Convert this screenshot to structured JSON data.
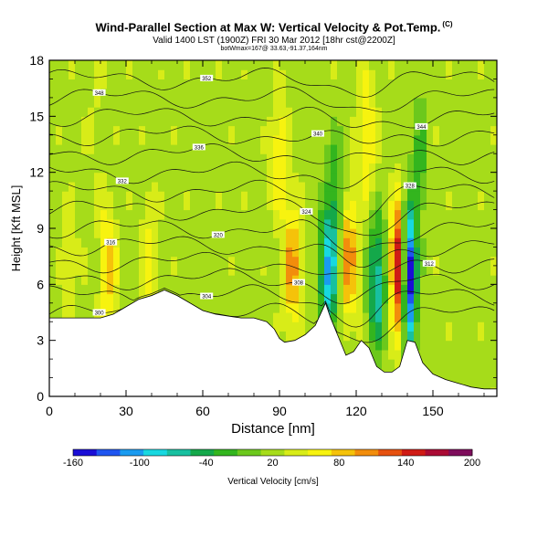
{
  "header": {
    "title": "Wind-Parallel Section at Max W: Vertical Velocity & Pot.Temp.",
    "copyright": "(C)",
    "subtitle": "Valid 1400 LST (1900Z) FRI 30 Mar 2012 [18hr cst@2200Z]",
    "subtitle2": "botWmax=167@ 33.63,-91.37,164nm"
  },
  "chart_data": {
    "type": "heatmap",
    "title": "Wind-Parallel Section at Max W: Vertical Velocity & Pot.Temp.",
    "xlabel": "Distance [nm]",
    "ylabel": "Height [Kft MSL]",
    "xlim": [
      0,
      175
    ],
    "ylim": [
      0,
      18
    ],
    "xticks": [
      0,
      30,
      60,
      90,
      120,
      150
    ],
    "yticks": [
      0,
      3,
      6,
      9,
      12,
      15,
      18
    ],
    "xtick_labels": [
      "0",
      "30",
      "60",
      "90",
      "120",
      "150"
    ],
    "ytick_labels": [
      "0",
      "3",
      "6",
      "9",
      "12",
      "15",
      "18"
    ],
    "colorbar": {
      "label": "Vertical Velocity [cm/s]",
      "min": -160,
      "max": 200,
      "tick_values": [
        -160,
        -100,
        -40,
        20,
        80,
        140,
        200
      ],
      "tick_labels": [
        "-160",
        "-100",
        "-40",
        "20",
        "80",
        "140",
        "200"
      ],
      "colors": [
        "#1a0ed6",
        "#1f55f0",
        "#1a9bf0",
        "#18d8e0",
        "#18c0a0",
        "#14a84a",
        "#33b51e",
        "#6cc81c",
        "#a6dc1a",
        "#d8ec18",
        "#f7f30f",
        "#f5c20a",
        "#f28d0c",
        "#e6510f",
        "#cf1b15",
        "#aa0b35",
        "#7e0d5c"
      ]
    },
    "terrain_top_kft": [
      [
        0,
        4.2
      ],
      [
        10,
        4.2
      ],
      [
        20,
        4.2
      ],
      [
        25,
        4.4
      ],
      [
        30,
        4.8
      ],
      [
        35,
        5.2
      ],
      [
        40,
        5.4
      ],
      [
        45,
        5.7
      ],
      [
        50,
        5.4
      ],
      [
        55,
        5.0
      ],
      [
        60,
        4.6
      ],
      [
        65,
        4.4
      ],
      [
        70,
        4.3
      ],
      [
        75,
        4.2
      ],
      [
        80,
        4.2
      ],
      [
        85,
        4.0
      ],
      [
        88,
        3.6
      ],
      [
        90,
        3.1
      ],
      [
        92,
        2.9
      ],
      [
        96,
        3.0
      ],
      [
        100,
        3.3
      ],
      [
        104,
        3.8
      ],
      [
        108,
        5.0
      ],
      [
        110,
        4.2
      ],
      [
        113,
        3.2
      ],
      [
        116,
        2.2
      ],
      [
        119,
        2.4
      ],
      [
        122,
        3.0
      ],
      [
        125,
        2.6
      ],
      [
        128,
        1.6
      ],
      [
        131,
        1.3
      ],
      [
        134,
        1.3
      ],
      [
        137,
        1.6
      ],
      [
        140,
        3.0
      ],
      [
        143,
        2.9
      ],
      [
        146,
        1.8
      ],
      [
        150,
        1.2
      ],
      [
        155,
        0.9
      ],
      [
        160,
        0.7
      ],
      [
        165,
        0.5
      ],
      [
        170,
        0.4
      ],
      [
        175,
        0.4
      ]
    ],
    "velocity_maxima": [
      {
        "x": 8,
        "z": 7.2,
        "w": 45
      },
      {
        "x": 23,
        "z": 7.0,
        "w": 80
      },
      {
        "x": 39,
        "z": 7.5,
        "w": 60
      },
      {
        "x": 95,
        "z": 7.0,
        "w": 100
      },
      {
        "x": 117,
        "z": 7.5,
        "w": 110
      },
      {
        "x": 136,
        "z": 7.0,
        "w": 167
      },
      {
        "x": 90,
        "z": 13.0,
        "w": 70
      },
      {
        "x": 124,
        "z": 14.0,
        "w": 80
      },
      {
        "x": 18,
        "z": 14.5,
        "w": 30
      }
    ],
    "velocity_minima": [
      {
        "x": 109,
        "z": 6.5,
        "w": -100
      },
      {
        "x": 128,
        "z": 6.0,
        "w": -80
      },
      {
        "x": 141,
        "z": 6.5,
        "w": -160
      },
      {
        "x": 112,
        "z": 10.5,
        "w": -30
      },
      {
        "x": 145,
        "z": 12.5,
        "w": -20
      }
    ],
    "isentropes": [
      {
        "theta": "300",
        "base_kft": 4.4
      },
      {
        "theta": "304",
        "base_kft": 5.4
      },
      {
        "theta": "308",
        "base_kft": 6.3
      },
      {
        "theta": "312",
        "base_kft": 7.2
      },
      {
        "theta": "316",
        "base_kft": 8.1
      },
      {
        "theta": "320",
        "base_kft": 9.0
      },
      {
        "theta": "324",
        "base_kft": 10.0
      },
      {
        "theta": "328",
        "base_kft": 11.0
      },
      {
        "theta": "332",
        "base_kft": 12.0
      },
      {
        "theta": "336",
        "base_kft": 13.0
      },
      {
        "theta": "340",
        "base_kft": 14.0
      },
      {
        "theta": "344",
        "base_kft": 15.0
      },
      {
        "theta": "348",
        "base_kft": 16.0
      },
      {
        "theta": "352",
        "base_kft": 17.0
      }
    ],
    "grid": false,
    "legend": "bottom colorbar"
  }
}
